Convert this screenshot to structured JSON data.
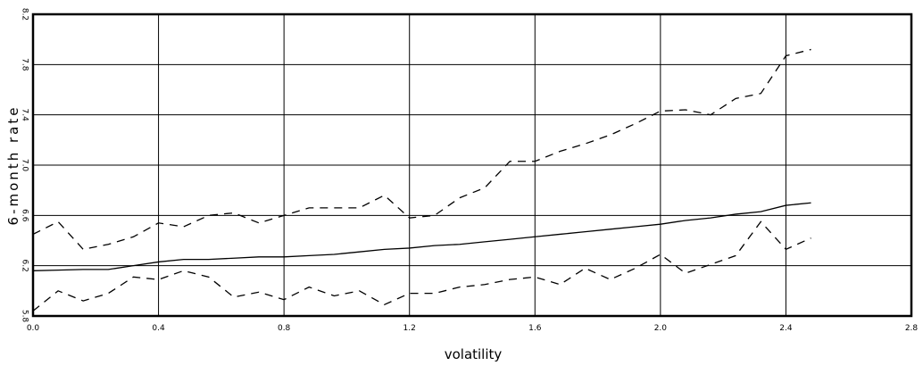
{
  "chart_data": {
    "type": "line",
    "x_label": "volatility",
    "y_label": "6-month rate",
    "xlim": [
      0,
      2.8
    ],
    "ylim": [
      5.8,
      8.2
    ],
    "xticks": [
      {
        "value": 0,
        "label": "0.0"
      },
      0.4,
      0.8,
      1.2,
      1.6,
      {
        "value": 2,
        "label": "2.0"
      },
      2.4,
      2.8
    ],
    "yticks": [
      5.8,
      6.2,
      6.6,
      {
        "value": 7,
        "label": "7.0"
      },
      7.4,
      7.8,
      8.2
    ],
    "grid": true,
    "x": [
      0,
      0.08,
      0.16,
      0.24,
      0.32,
      0.4,
      0.48,
      0.56,
      0.64,
      0.72,
      0.8,
      0.88,
      0.96,
      1.04,
      1.12,
      1.2,
      1.28,
      1.36,
      1.44,
      1.52,
      1.6,
      1.68,
      1.76,
      1.84,
      1.92,
      2.0,
      2.08,
      2.16,
      2.24,
      2.32,
      2.4,
      2.48
    ],
    "series": [
      {
        "color": "#000000",
        "dashed": false,
        "values": [
          6.16,
          6.165,
          6.17,
          6.17,
          6.2,
          6.23,
          6.25,
          6.25,
          6.26,
          6.27,
          6.27,
          6.28,
          6.29,
          6.31,
          6.33,
          6.34,
          6.36,
          6.37,
          6.39,
          6.41,
          6.43,
          6.45,
          6.47,
          6.49,
          6.51,
          6.53,
          6.56,
          6.58,
          6.61,
          6.63,
          6.68,
          6.7
        ]
      },
      {
        "color": "#000000",
        "dashed": true,
        "values": [
          6.45,
          6.55,
          6.33,
          6.37,
          6.43,
          6.54,
          6.51,
          6.6,
          6.62,
          6.54,
          6.6,
          6.66,
          6.66,
          6.66,
          6.76,
          6.58,
          6.6,
          6.74,
          6.82,
          7.03,
          7.03,
          7.11,
          7.17,
          7.24,
          7.33,
          7.43,
          7.44,
          7.4,
          7.53,
          7.57,
          7.87,
          7.92
        ]
      },
      {
        "color": "#000000",
        "dashed": true,
        "values": [
          5.84,
          6.0,
          5.92,
          5.98,
          6.11,
          6.09,
          6.16,
          6.11,
          5.95,
          5.99,
          5.93,
          6.03,
          5.96,
          6.0,
          5.89,
          5.98,
          5.98,
          6.03,
          6.05,
          6.09,
          6.11,
          6.05,
          6.18,
          6.09,
          6.18,
          6.29,
          6.14,
          6.21,
          6.28,
          6.55,
          6.33,
          6.42
        ]
      }
    ]
  }
}
